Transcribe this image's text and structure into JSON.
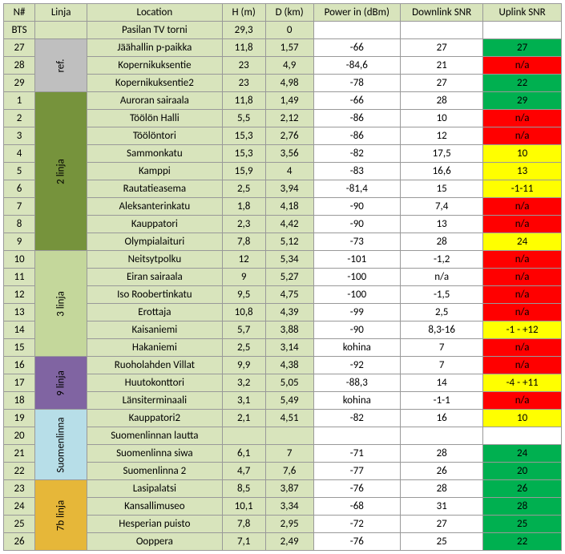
{
  "headers": {
    "n": "N#",
    "linja": "Linja",
    "location": "Location",
    "h": "H (m)",
    "d": "D (km)",
    "power": "Power in (dBm)",
    "downlink": "Downlink SNR",
    "uplink": "Uplink SNR"
  },
  "linja_groups": [
    {
      "label": "",
      "span": 1,
      "bg": "#d8e4bc",
      "rows_ref": "bts"
    },
    {
      "label": "ref.",
      "span": 3,
      "bg": "#bfbfbf"
    },
    {
      "label": "2 linja",
      "span": 9,
      "bg": "#76933c"
    },
    {
      "label": "3 linja",
      "span": 6,
      "bg": "#c4d79b"
    },
    {
      "label": "9 linja",
      "span": 3,
      "bg": "#8064a2"
    },
    {
      "label": "Suomenlinna",
      "span": 4,
      "bg": "#b7dee8"
    },
    {
      "label": "7b linja",
      "span": 4,
      "bg": "#e6b739"
    }
  ],
  "colors": {
    "green": "#00b050",
    "yellow": "#ffff00",
    "red": "#ff0000",
    "header": "#d8e4bc"
  },
  "rows": [
    {
      "n": "BTS",
      "loc": "Pasilan TV torni",
      "h": "29,3",
      "d": "0",
      "pwr": "",
      "dl": "",
      "ul": "",
      "ulc": ""
    },
    {
      "n": "27",
      "loc": "Jäähallin p-paikka",
      "h": "11,8",
      "d": "1,57",
      "pwr": "-66",
      "dl": "27",
      "ul": "27",
      "ulc": "green"
    },
    {
      "n": "28",
      "loc": "Kopernikuksentie",
      "h": "23",
      "d": "4,9",
      "pwr": "-84,6",
      "dl": "21",
      "ul": "n/a",
      "ulc": "red"
    },
    {
      "n": "29",
      "loc": "Kopernikuksentie2",
      "h": "23",
      "d": "4,98",
      "pwr": "-78",
      "dl": "27",
      "ul": "22",
      "ulc": "green"
    },
    {
      "n": "1",
      "loc": "Auroran sairaala",
      "h": "11,8",
      "d": "1,49",
      "pwr": "-66",
      "dl": "28",
      "ul": "29",
      "ulc": "green"
    },
    {
      "n": "2",
      "loc": "Töölön Halli",
      "h": "5,5",
      "d": "2,12",
      "pwr": "-86",
      "dl": "10",
      "ul": "n/a",
      "ulc": "red"
    },
    {
      "n": "3",
      "loc": "Töölöntori",
      "h": "15,3",
      "d": "2,76",
      "pwr": "-86",
      "dl": "12",
      "ul": "n/a",
      "ulc": "red"
    },
    {
      "n": "4",
      "loc": "Sammonkatu",
      "h": "15,3",
      "d": "3,56",
      "pwr": "-82",
      "dl": "17,5",
      "ul": "10",
      "ulc": "yellow"
    },
    {
      "n": "5",
      "loc": "Kamppi",
      "h": "15,9",
      "d": "4",
      "pwr": "-83",
      "dl": "16,6",
      "ul": "13",
      "ulc": "yellow"
    },
    {
      "n": "6",
      "loc": "Rautatieasema",
      "h": "2,5",
      "d": "3,94",
      "pwr": "-81,4",
      "dl": "15",
      "ul": "-1-11",
      "ulc": "yellow"
    },
    {
      "n": "7",
      "loc": "Aleksanterinkatu",
      "h": "1,8",
      "d": "4,18",
      "pwr": "-90",
      "dl": "7,4",
      "ul": "n/a",
      "ulc": "red"
    },
    {
      "n": "8",
      "loc": "Kauppatori",
      "h": "2,3",
      "d": "4,42",
      "pwr": "-90",
      "dl": "13",
      "ul": "n/a",
      "ulc": "red"
    },
    {
      "n": "9",
      "loc": "Olympialaituri",
      "h": "7,8",
      "d": "5,12",
      "pwr": "-73",
      "dl": "28",
      "ul": "24",
      "ulc": "yellow"
    },
    {
      "n": "10",
      "loc": "Neitsytpolku",
      "h": "12",
      "d": "5,34",
      "pwr": "-101",
      "dl": "-1,2",
      "ul": "n/a",
      "ulc": "red"
    },
    {
      "n": "11",
      "loc": "Eiran sairaala",
      "h": "9",
      "d": "5,27",
      "pwr": "-100",
      "dl": "n/a",
      "ul": "n/a",
      "ulc": "red"
    },
    {
      "n": "12",
      "loc": "Iso Roobertinkatu",
      "h": "9,5",
      "d": "4,75",
      "pwr": "-100",
      "dl": "-1,5",
      "ul": "n/a",
      "ulc": "red"
    },
    {
      "n": "13",
      "loc": "Erottaja",
      "h": "10,8",
      "d": "4,39",
      "pwr": "-99",
      "dl": "2,5",
      "ul": "n/a",
      "ulc": "red"
    },
    {
      "n": "14",
      "loc": "Kaisaniemi",
      "h": "5,7",
      "d": "3,88",
      "pwr": "-90",
      "dl": "8,3-16",
      "ul": "-1 - +12",
      "ulc": "yellow"
    },
    {
      "n": "15",
      "loc": "Hakaniemi",
      "h": "2,5",
      "d": "3,14",
      "pwr": "kohina",
      "dl": "7",
      "ul": "n/a",
      "ulc": "red"
    },
    {
      "n": "16",
      "loc": "Ruoholahden Villat",
      "h": "9,9",
      "d": "4,38",
      "pwr": "-92",
      "dl": "7",
      "ul": "n/a",
      "ulc": "red"
    },
    {
      "n": "17",
      "loc": "Huutokonttori",
      "h": "3,2",
      "d": "5,05",
      "pwr": "-88,3",
      "dl": "14",
      "ul": "-4 - +11",
      "ulc": "yellow"
    },
    {
      "n": "18",
      "loc": "Länsiterminaali",
      "h": "3,1",
      "d": "5,49",
      "pwr": "kohina",
      "dl": "-1-1",
      "ul": "n/a",
      "ulc": "red"
    },
    {
      "n": "19",
      "loc": "Kauppatori2",
      "h": "2,1",
      "d": "4,51",
      "pwr": "-82",
      "dl": "16",
      "ul": "10",
      "ulc": "yellow"
    },
    {
      "n": "20",
      "loc": "Suomenlinnan lautta",
      "h": "",
      "d": "",
      "pwr": "",
      "dl": "",
      "ul": "",
      "ulc": ""
    },
    {
      "n": "21",
      "loc": "Suomenlinna siwa",
      "h": "6,1",
      "d": "7",
      "pwr": "-71",
      "dl": "28",
      "ul": "24",
      "ulc": "green"
    },
    {
      "n": "22",
      "loc": "Suomenlinna 2",
      "h": "4,7",
      "d": "7,6",
      "pwr": "-77",
      "dl": "26",
      "ul": "20",
      "ulc": "green"
    },
    {
      "n": "23",
      "loc": "Lasipalatsi",
      "h": "8,5",
      "d": "3,87",
      "pwr": "-76",
      "dl": "28",
      "ul": "26",
      "ulc": "green"
    },
    {
      "n": "24",
      "loc": "Kansallimuseo",
      "h": "10,1",
      "d": "3,34",
      "pwr": "-68",
      "dl": "31",
      "ul": "28",
      "ulc": "green"
    },
    {
      "n": "25",
      "loc": "Hesperian puisto",
      "h": "7,8",
      "d": "2,95",
      "pwr": "-72",
      "dl": "27",
      "ul": "25",
      "ulc": "green"
    },
    {
      "n": "26",
      "loc": "Ooppera",
      "h": "7,1",
      "d": "2,49",
      "pwr": "-76",
      "dl": "25",
      "ul": "22",
      "ulc": "green"
    }
  ]
}
